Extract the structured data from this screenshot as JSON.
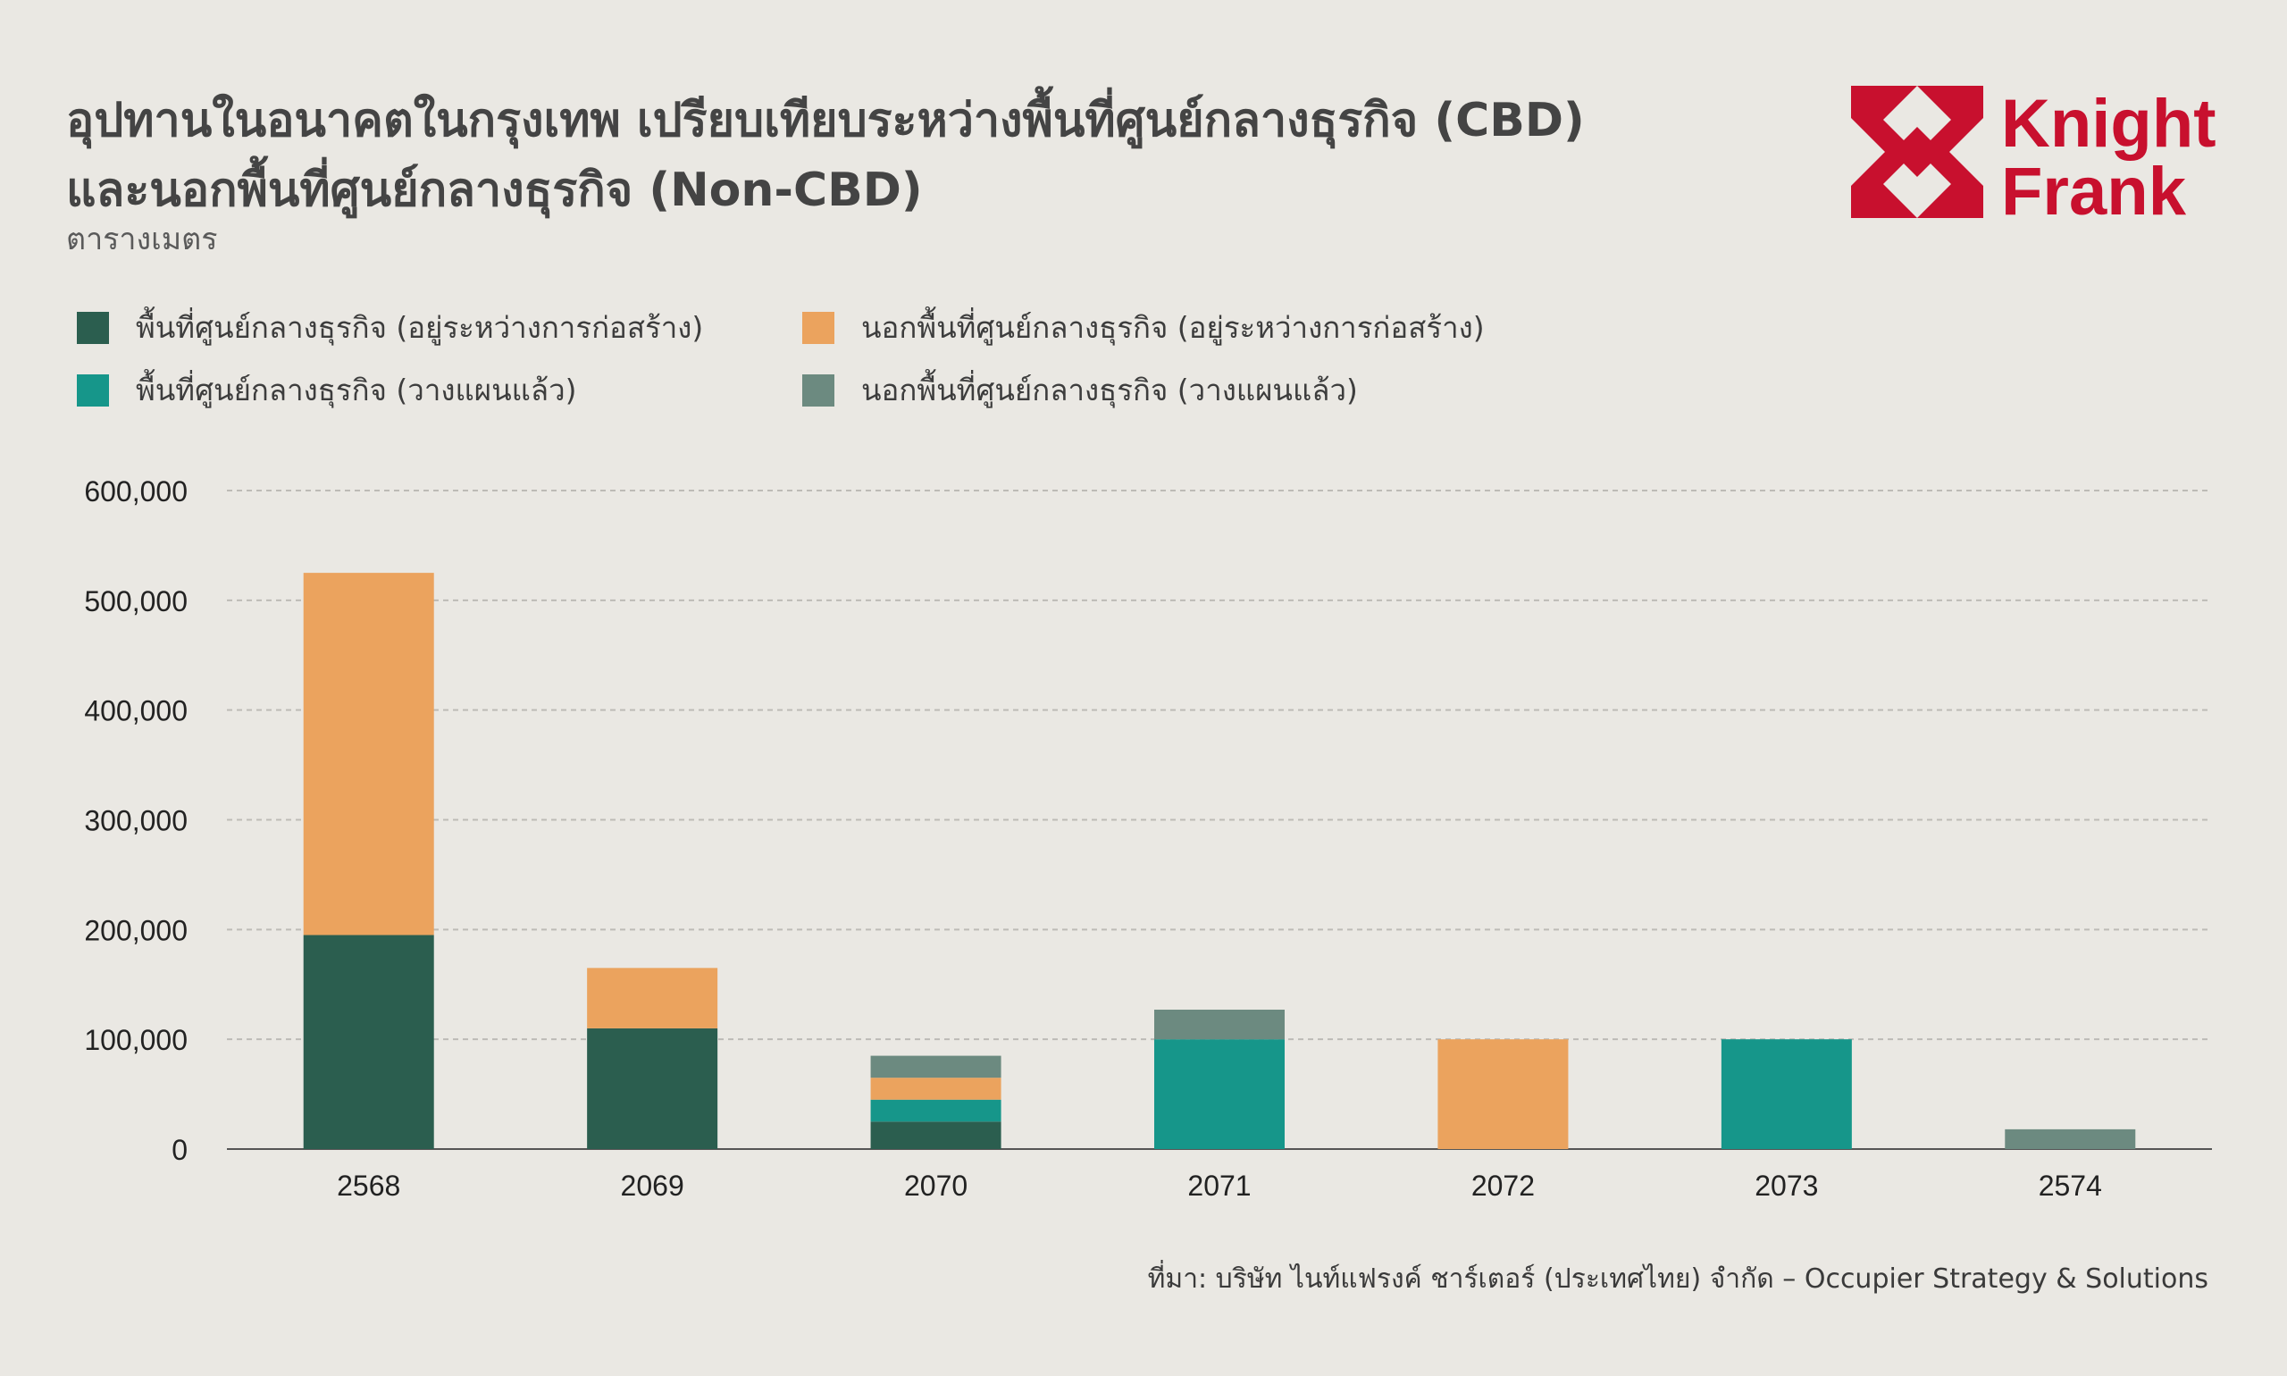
{
  "title_line1": "อุปทานในอนาคตในกรุงเทพ เปรียบเทียบระหว่างพื้นที่ศูนย์กลางธุรกิจ (CBD)",
  "title_line2": "และนอกพื้นที่ศูนย์กลางธุรกิจ (Non-CBD)",
  "subtitle": "ตารางเมตร",
  "logo": {
    "line1": "Knight",
    "line2": "Frank",
    "color": "#C8102E"
  },
  "source": "ที่มา: บริษัท ไนท์แฟรงค์ ชาร์เตอร์ (ประเทศไทย) จำกัด – Occupier Strategy & Solutions",
  "chart_data": {
    "type": "bar",
    "stacked": true,
    "categories": [
      "2568",
      "2069",
      "2070",
      "2071",
      "2072",
      "2073",
      "2574"
    ],
    "series": [
      {
        "name": "พื้นที่ศูนย์กลางธุรกิจ (อยู่ระหว่างการก่อสร้าง)",
        "color": "#2B5E4F",
        "values": [
          195000,
          110000,
          25000,
          0,
          0,
          0,
          0
        ]
      },
      {
        "name": "พื้นที่ศูนย์กลางธุรกิจ (วางแผนแล้ว)",
        "color": "#16968A",
        "values": [
          0,
          0,
          20000,
          100000,
          0,
          100000,
          0
        ]
      },
      {
        "name": "นอกพื้นที่ศูนย์กลางธุรกิจ (อยู่ระหว่างการก่อสร้าง)",
        "color": "#EBA35E",
        "values": [
          330000,
          55000,
          20000,
          0,
          100000,
          0,
          0
        ]
      },
      {
        "name": "นอกพื้นที่ศูนย์กลางธุรกิจ (วางแผนแล้ว)",
        "color": "#6C8A80",
        "values": [
          0,
          0,
          20000,
          27000,
          0,
          0,
          18000
        ]
      }
    ],
    "ylim": [
      0,
      600000
    ],
    "yticks": [
      0,
      100000,
      200000,
      300000,
      400000,
      500000,
      600000
    ],
    "ytick_labels": [
      "0",
      "100,000",
      "200,000",
      "300,000",
      "400,000",
      "500,000",
      "600,000"
    ],
    "grid": true,
    "legend_position": "top-left"
  }
}
